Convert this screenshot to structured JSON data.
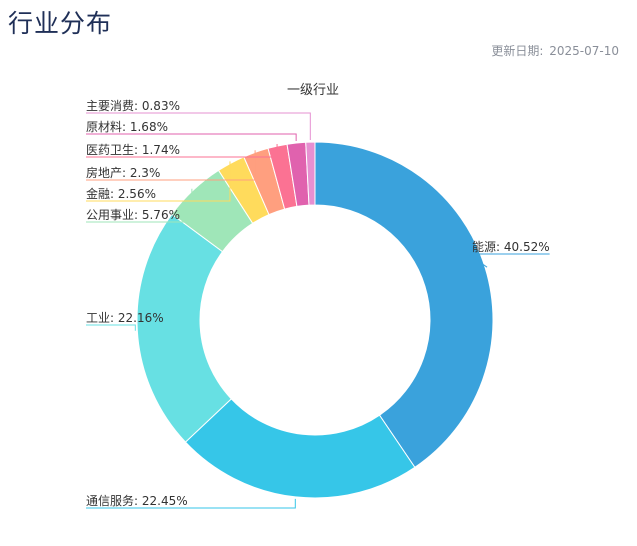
{
  "page": {
    "title": "行业分布",
    "update_label": "更新日期:",
    "update_date": "2025-07-10"
  },
  "chart_data": {
    "type": "pie",
    "variant": "donut",
    "title": "一级行业",
    "legend": "none",
    "slices": [
      {
        "label": "能源",
        "value": 40.52,
        "color": "#3aa2dc"
      },
      {
        "label": "通信服务",
        "value": 22.45,
        "color": "#36c6e8"
      },
      {
        "label": "工业",
        "value": 22.16,
        "color": "#67e0e3"
      },
      {
        "label": "公用事业",
        "value": 5.76,
        "color": "#9fe6b8"
      },
      {
        "label": "金融",
        "value": 2.56,
        "color": "#ffdb5c"
      },
      {
        "label": "房地产",
        "value": 2.3,
        "color": "#ff9f7f"
      },
      {
        "label": "医药卫生",
        "value": 1.74,
        "color": "#fb7293"
      },
      {
        "label": "原材料",
        "value": 1.68,
        "color": "#e062ae"
      },
      {
        "label": "主要消费",
        "value": 0.83,
        "color": "#e690d1"
      }
    ]
  }
}
